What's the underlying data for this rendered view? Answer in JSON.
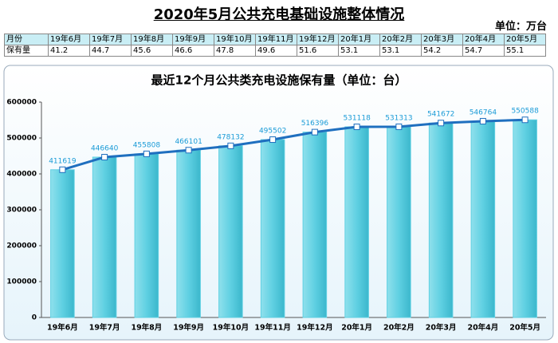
{
  "title": "2020年5月公共充电基础设施整体情况",
  "unit": "单位：万台",
  "table": {
    "rows": [
      [
        "月份",
        "19年6月",
        "19年7月",
        "19年8月",
        "19年9月",
        "19年10月",
        "19年11月",
        "19年12月",
        "20年1月",
        "20年2月",
        "20年3月",
        "20年4月",
        "20年5月"
      ],
      [
        "保有量",
        41.2,
        44.7,
        45.6,
        46.6,
        47.8,
        49.6,
        51.6,
        53.1,
        53.1,
        54.2,
        54.7,
        55.1
      ]
    ]
  },
  "chart_data": {
    "type": "bar_line",
    "title": "最近12个月公共类充电设施保有量（单位：台）",
    "categories": [
      "19年6月",
      "19年7月",
      "19年8月",
      "19年9月",
      "19年10月",
      "19年11月",
      "19年12月",
      "20年1月",
      "20年2月",
      "20年3月",
      "20年4月",
      "20年5月"
    ],
    "values": [
      411619,
      446640,
      455808,
      466101,
      478132,
      495502,
      516396,
      531118,
      531313,
      541672,
      546764,
      550588
    ],
    "bar_color": "#5fd0e2",
    "line_color": "#1f6fbf",
    "label_color": "#1a9bd7",
    "ylim": [
      0,
      600000
    ],
    "yticks": [
      0,
      100000,
      200000,
      300000,
      400000,
      500000,
      600000
    ]
  }
}
